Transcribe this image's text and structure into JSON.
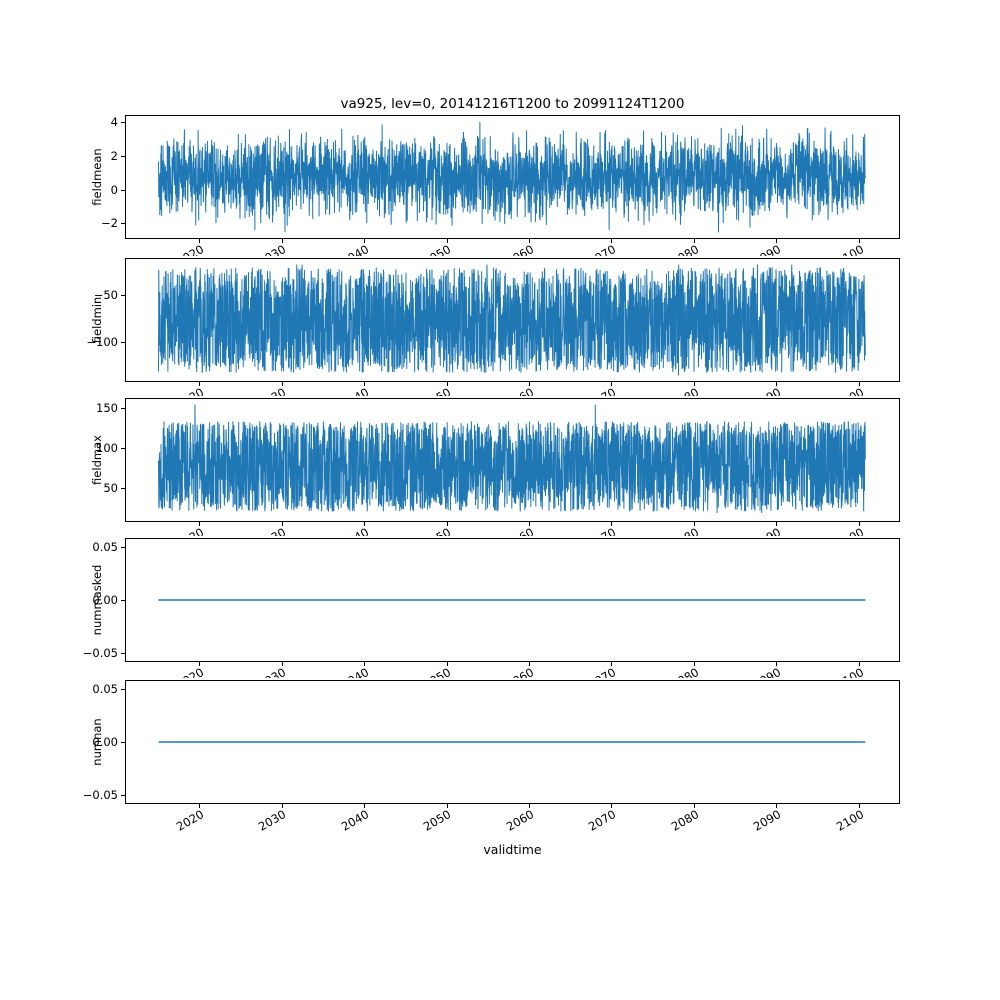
{
  "figure": {
    "title": "va925, lev=0, 20141216T1200 to 20991124T1200",
    "xlabel": "validtime",
    "line_color": "#1f77b4",
    "background": "#ffffff"
  },
  "chart_data": {
    "type": "line",
    "title": "va925, lev=0, 20141216T1200 to 20991124T1200",
    "xlabel": "validtime",
    "legend": "none",
    "grid": false,
    "x_range": {
      "data_start": 2014.96,
      "data_end": 2100.9,
      "axis_min": 2011,
      "axis_max": 2105
    },
    "x_ticks": {
      "values": [
        2020,
        2030,
        2040,
        2050,
        2060,
        2070,
        2080,
        2090,
        2100
      ],
      "labels": [
        "2020",
        "2030",
        "2040",
        "2050",
        "2060",
        "2070",
        "2080",
        "2090",
        "2100"
      ]
    },
    "subplots": [
      {
        "name": "fieldmean",
        "ylabel": "fieldmean",
        "ylim": [
          -2.94,
          4.44
        ],
        "y_ticks": {
          "values": [
            -2,
            0,
            2,
            4
          ],
          "labels": [
            "−2",
            "0",
            "2",
            "4"
          ]
        },
        "series": {
          "kind": "noise",
          "dist": "bell",
          "mean": 0.75,
          "amplitude": 3.5,
          "data_min": -2.6,
          "data_max": 4.1,
          "extreme_prob": 0.0008,
          "points": 3500,
          "seed": 42
        }
      },
      {
        "name": "fieldmin",
        "ylabel": "fieldmin",
        "ylim": [
          -143,
          -11
        ],
        "y_ticks": {
          "values": [
            -50,
            -100
          ],
          "labels": [
            "−50",
            "−100"
          ]
        },
        "series": {
          "kind": "noise",
          "dist": "uniform",
          "mean": -77,
          "amplitude": 57,
          "data_min": -137,
          "data_max": -17,
          "extreme_prob": 0.002,
          "points": 3500,
          "seed": 7
        }
      },
      {
        "name": "fieldmax",
        "ylabel": "fieldmax",
        "ylim": [
          8,
          162
        ],
        "y_ticks": {
          "values": [
            50,
            100,
            150
          ],
          "labels": [
            "50",
            "100",
            "150"
          ]
        },
        "series": {
          "kind": "noise",
          "dist": "uniform",
          "mean": 77,
          "amplitude": 57,
          "data_min": 18,
          "data_max": 155,
          "extreme_prob": 0.002,
          "points": 3500,
          "seed": 13
        }
      },
      {
        "name": "nummasked",
        "ylabel": "nummasked",
        "ylim": [
          -0.058,
          0.058
        ],
        "y_ticks": {
          "values": [
            0.05,
            0,
            -0.05
          ],
          "labels": [
            "0.05",
            "0.00",
            "−0.05"
          ]
        },
        "series": {
          "kind": "constant",
          "value": 0
        }
      },
      {
        "name": "numnan",
        "ylabel": "numnan",
        "ylim": [
          -0.058,
          0.058
        ],
        "y_ticks": {
          "values": [
            0.05,
            0,
            -0.05
          ],
          "labels": [
            "0.05",
            "0.00",
            "−0.05"
          ]
        },
        "series": {
          "kind": "constant",
          "value": 0
        }
      }
    ]
  }
}
